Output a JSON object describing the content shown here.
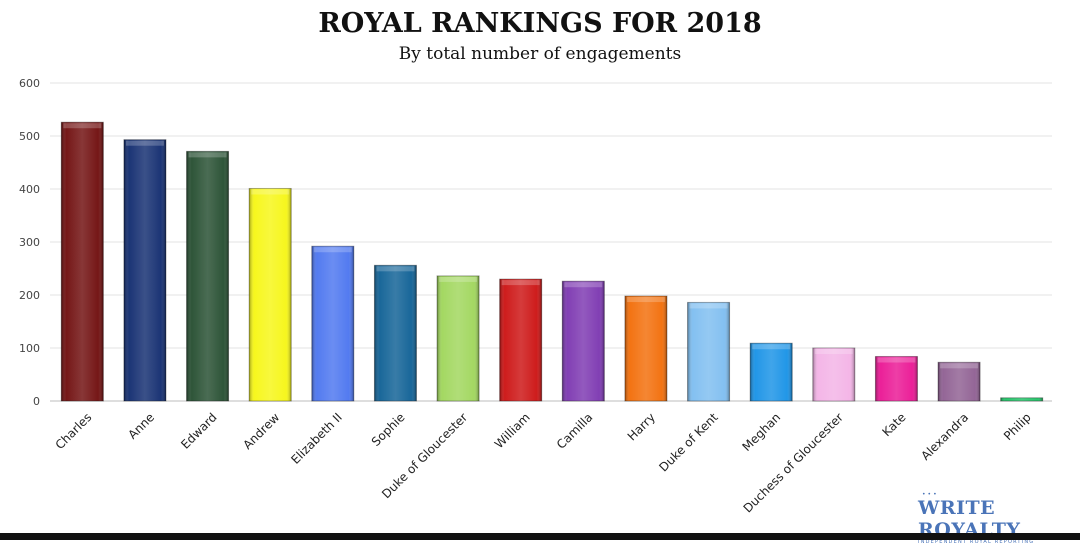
{
  "title": "ROYAL RANKINGS FOR 2018",
  "subtitle": "By total number of engagements",
  "brand": {
    "name": "WRITE ROYALTY",
    "tagline": "INDEPENDENT ROYAL REPORTING",
    "dots": "•••"
  },
  "chart_data": {
    "type": "bar",
    "title": "ROYAL RANKINGS FOR 2018",
    "subtitle": "By total number of engagements",
    "xlabel": "",
    "ylabel": "",
    "ylim": [
      0,
      600
    ],
    "yticks": [
      0,
      100,
      200,
      300,
      400,
      500,
      600
    ],
    "grid": true,
    "legend": "none",
    "categories": [
      "Charles",
      "Anne",
      "Edward",
      "Andrew",
      "Elizabeth II",
      "Sophie",
      "Duke of Gloucester",
      "William",
      "Camilla",
      "Harry",
      "Duke of Kent",
      "Meghan",
      "Duchess of Gloucester",
      "Kate",
      "Alexandra",
      "Philip"
    ],
    "values": [
      526,
      493,
      471,
      401,
      292,
      256,
      236,
      230,
      226,
      198,
      186,
      109,
      100,
      84,
      73,
      6
    ],
    "colors": [
      "#6e0b0b",
      "#0f2a6e",
      "#234c2e",
      "#f6f612",
      "#4a74ef",
      "#0d5f94",
      "#9fd65a",
      "#cc1010",
      "#7b35b0",
      "#f26c06",
      "#7dbdf0",
      "#1691e6",
      "#f3b2e6",
      "#ea1493",
      "#8e5e91",
      "#1fc466"
    ]
  }
}
